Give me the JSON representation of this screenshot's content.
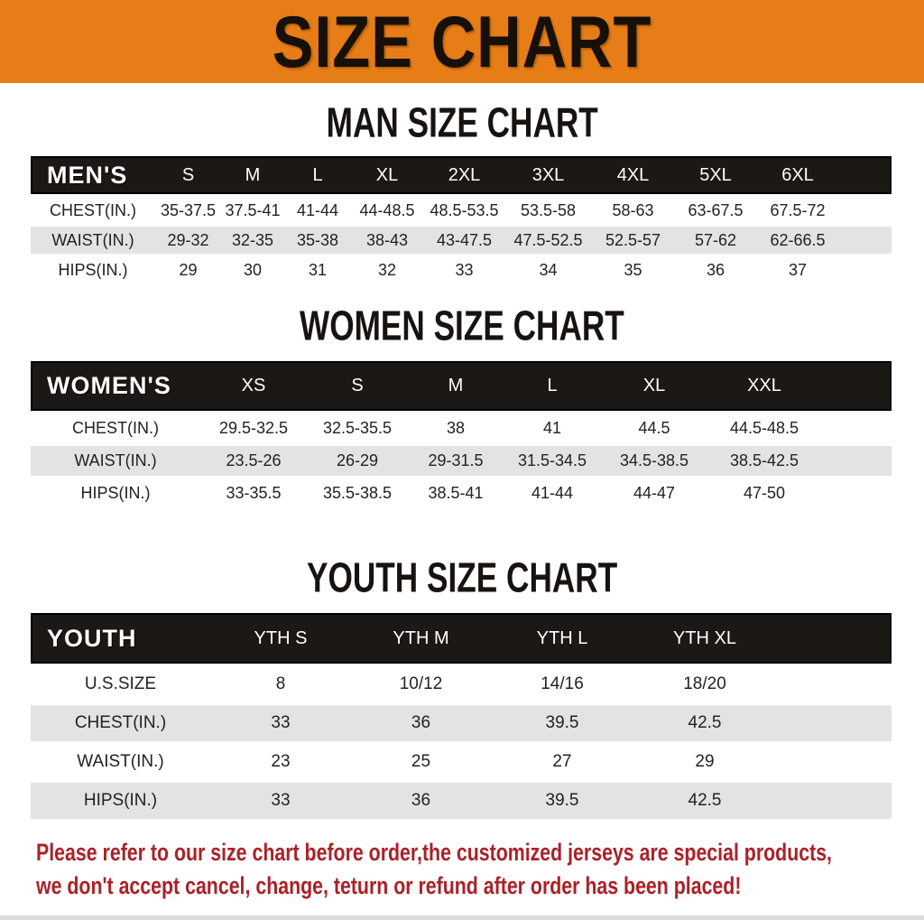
{
  "banner": {
    "title": "SIZE CHART",
    "bg_color": "#e67d17"
  },
  "sections": [
    {
      "heading": "MAN SIZE CHART",
      "table": {
        "label": "MEN'S",
        "columns": [
          "S",
          "M",
          "L",
          "XL",
          "2XL",
          "3XL",
          "4XL",
          "5XL",
          "6XL"
        ],
        "rows": [
          {
            "label": "CHEST(IN.)",
            "values": [
              "35-37.5",
              "37.5-41",
              "41-44",
              "44-48.5",
              "48.5-53.5",
              "53.5-58",
              "58-63",
              "63-67.5",
              "67.5-72"
            ]
          },
          {
            "label": "WAIST(IN.)",
            "values": [
              "29-32",
              "32-35",
              "35-38",
              "38-43",
              "43-47.5",
              "47.5-52.5",
              "52.5-57",
              "57-62",
              "62-66.5"
            ]
          },
          {
            "label": "HIPS(IN.)",
            "values": [
              "29",
              "30",
              "31",
              "32",
              "33",
              "34",
              "35",
              "36",
              "37"
            ]
          }
        ]
      }
    },
    {
      "heading": "WOMEN SIZE CHART",
      "table": {
        "label": "WOMEN'S",
        "columns": [
          "XS",
          "S",
          "M",
          "L",
          "XL",
          "XXL"
        ],
        "rows": [
          {
            "label": "CHEST(IN.)",
            "values": [
              "29.5-32.5",
              "32.5-35.5",
              "38",
              "41",
              "44.5",
              "44.5-48.5"
            ]
          },
          {
            "label": "WAIST(IN.)",
            "values": [
              "23.5-26",
              "26-29",
              "29-31.5",
              "31.5-34.5",
              "34.5-38.5",
              "38.5-42.5"
            ]
          },
          {
            "label": "HIPS(IN.)",
            "values": [
              "33-35.5",
              "35.5-38.5",
              "38.5-41",
              "41-44",
              "44-47",
              "47-50"
            ]
          }
        ]
      }
    },
    {
      "heading": "YOUTH SIZE CHART",
      "table": {
        "label": "YOUTH",
        "columns": [
          "YTH S",
          "YTH M",
          "YTH L",
          "YTH XL"
        ],
        "rows": [
          {
            "label": "U.S.SIZE",
            "values": [
              "8",
              "10/12",
              "14/16",
              "18/20"
            ]
          },
          {
            "label": "CHEST(IN.)",
            "values": [
              "33",
              "36",
              "39.5",
              "42.5"
            ]
          },
          {
            "label": "WAIST(IN.)",
            "values": [
              "23",
              "25",
              "27",
              "29"
            ]
          },
          {
            "label": "HIPS(IN.)",
            "values": [
              "33",
              "36",
              "39.5",
              "42.5"
            ]
          }
        ]
      }
    }
  ],
  "footer": {
    "line1": "Please refer to our size chart before order,the customized jerseys are special products,",
    "line2": "we don't accept cancel, change, teturn or refund after order has been placed!",
    "text_color": "#ab2127"
  },
  "colors": {
    "banner_bg": "#e67d17",
    "header_band": "#1c1815",
    "row_alt": "#e3e3e3",
    "row_white": "#ffffff"
  }
}
